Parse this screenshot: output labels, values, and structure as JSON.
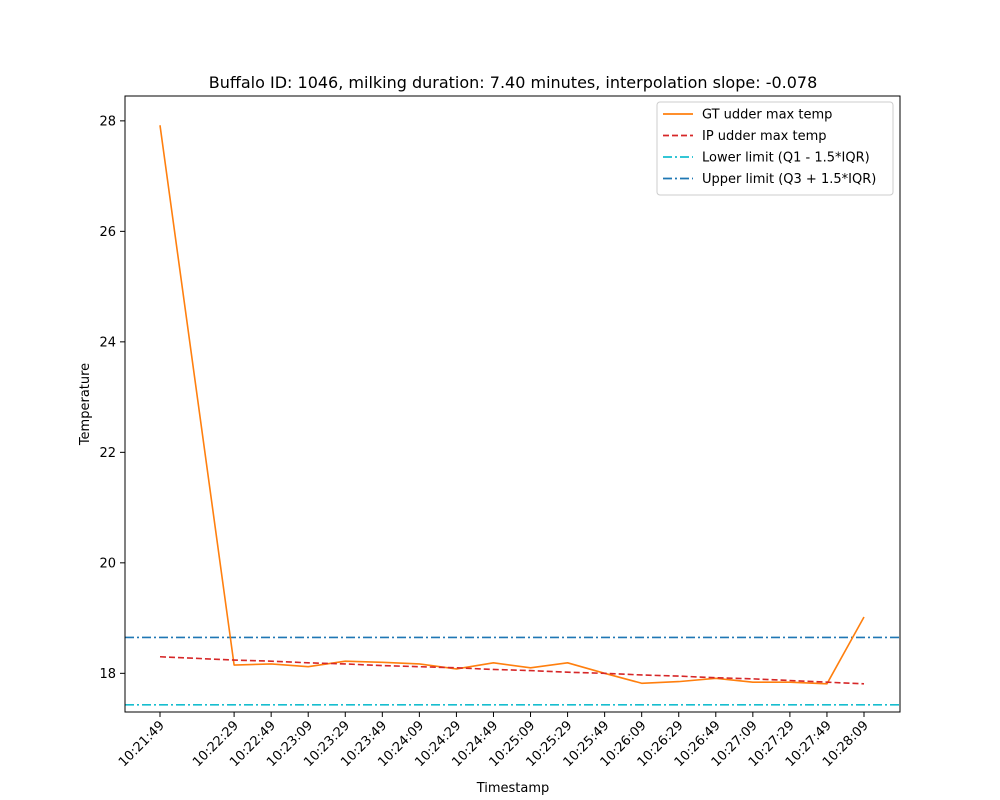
{
  "chart_data": {
    "type": "line",
    "title": "Buffalo ID: 1046, milking duration: 7.40 minutes, interpolation slope: -0.078",
    "xlabel": "Timestamp",
    "ylabel": "Temperature",
    "x": [
      "10:21:49",
      "10:22:29",
      "10:22:49",
      "10:23:09",
      "10:23:29",
      "10:23:49",
      "10:24:09",
      "10:24:29",
      "10:24:49",
      "10:25:09",
      "10:25:29",
      "10:25:49",
      "10:26:09",
      "10:26:29",
      "10:26:49",
      "10:27:09",
      "10:27:29",
      "10:27:49",
      "10:28:09"
    ],
    "yticks": [
      18,
      20,
      22,
      24,
      26,
      28
    ],
    "ylim": [
      17.3,
      28.45
    ],
    "series": [
      {
        "name": "GT udder max temp",
        "style": "solid",
        "color": "#ff7f0e",
        "values": [
          27.92,
          18.15,
          18.17,
          18.12,
          18.22,
          18.2,
          18.17,
          18.08,
          18.19,
          18.1,
          18.19,
          18.0,
          17.82,
          17.85,
          17.91,
          17.84,
          17.84,
          17.81,
          19.02
        ]
      },
      {
        "name": "IP udder max temp",
        "style": "dashed",
        "color": "#d62728",
        "values": [
          18.3,
          18.24,
          18.22,
          18.19,
          18.17,
          18.14,
          18.12,
          18.1,
          18.07,
          18.05,
          18.02,
          18.0,
          17.97,
          17.95,
          17.92,
          17.9,
          17.87,
          17.84,
          17.81
        ]
      }
    ],
    "reference_lines": [
      {
        "name": "Lower limit (Q1 - 1.5*IQR)",
        "y": 17.43,
        "style": "dashdot",
        "color": "#17becf"
      },
      {
        "name": "Upper limit (Q3 + 1.5*IQR)",
        "y": 18.65,
        "style": "dashdot",
        "color": "#1f77b4"
      }
    ],
    "legend_position": "top-right",
    "grid": false
  }
}
